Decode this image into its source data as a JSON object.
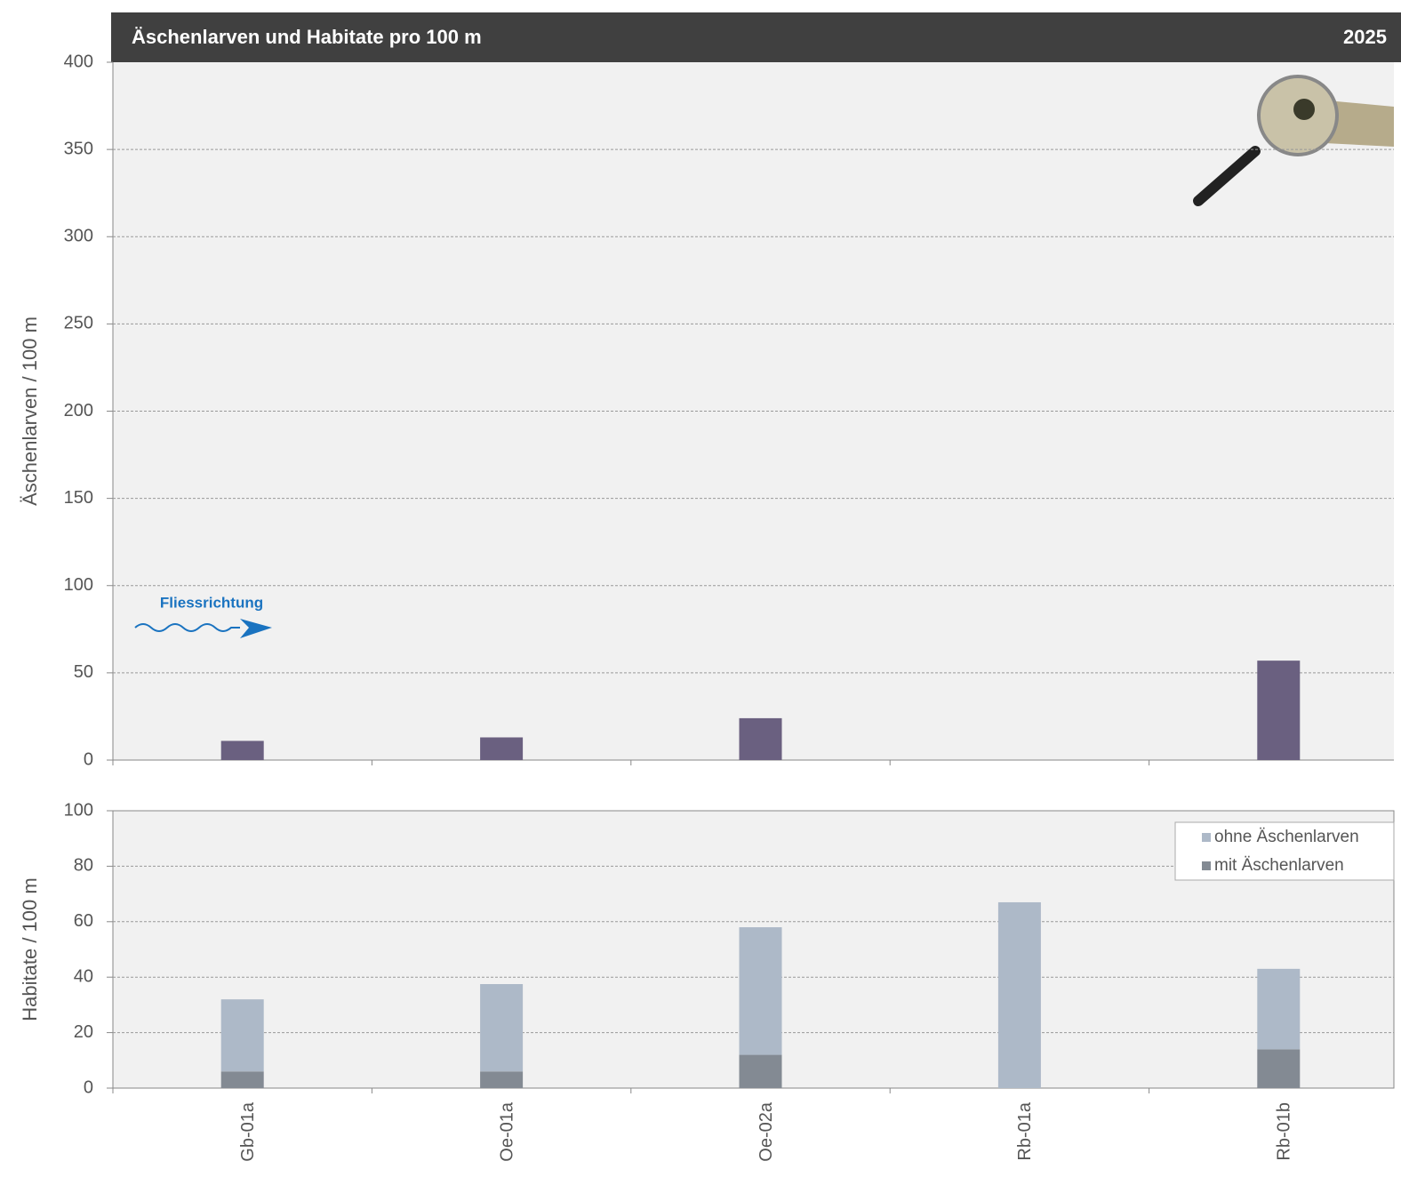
{
  "chart_data": [
    {
      "type": "bar",
      "title": "Äschenlarven und Habitate pro 100 m",
      "subtitle": "2025",
      "annotation": "Fliessrichtung",
      "y_label": "Äschenlarven / 100 m",
      "values": [
        11,
        13,
        24,
        0,
        57
      ],
      "color": "#6a6080",
      "ylim": [
        0,
        400
      ],
      "yticks": [
        0,
        50,
        100,
        150,
        200,
        250,
        300,
        350,
        400
      ],
      "grid": true
    },
    {
      "type": "stacked_bar",
      "y_label": "Habitate / 100 m",
      "categories": [
        "Gb-01a",
        "Oe-01a",
        "Oe-02a",
        "Rb-01a",
        "Rb-01b"
      ],
      "series": [
        {
          "name": "mit Äschenlarven",
          "color": "#838a93",
          "values": [
            6,
            6,
            12,
            0,
            14
          ]
        },
        {
          "name": "ohne Äschenlarven",
          "color": "#adb9c8",
          "values": [
            26,
            31.5,
            46,
            67,
            29
          ]
        }
      ],
      "ylim": [
        0,
        100
      ],
      "yticks": [
        0,
        20,
        40,
        60,
        80,
        100
      ],
      "grid": true,
      "legend": "top-right"
    }
  ]
}
